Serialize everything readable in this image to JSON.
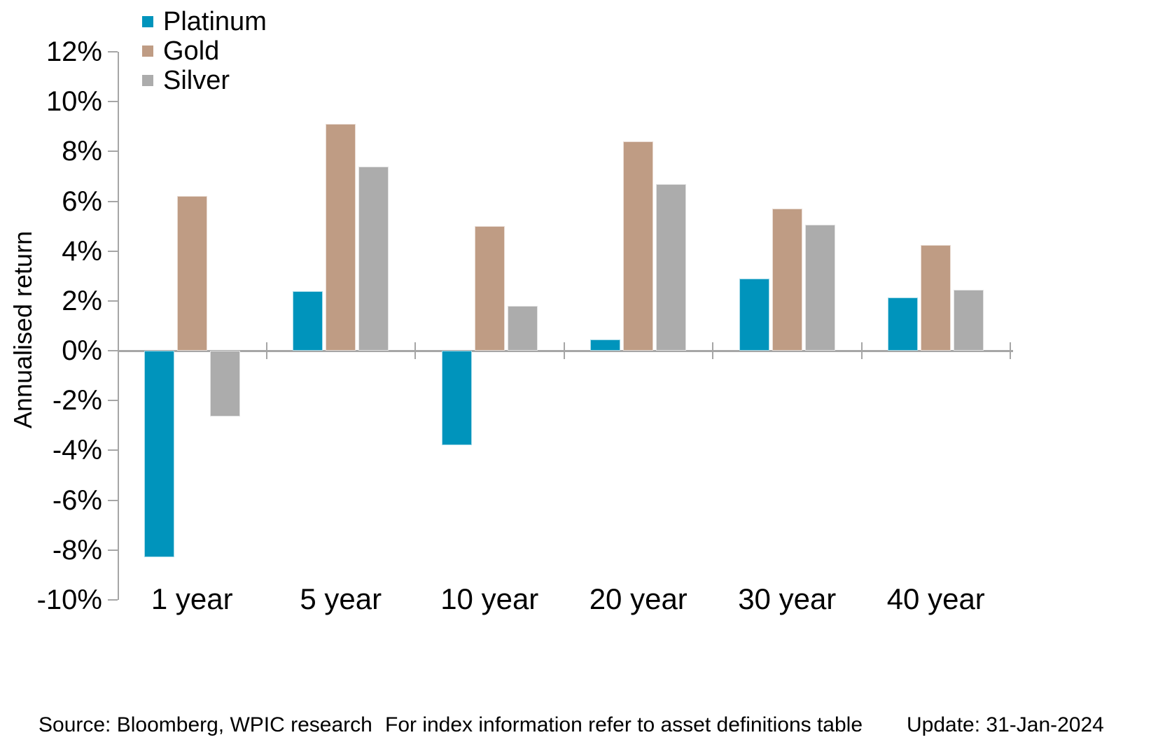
{
  "chart_data": {
    "type": "bar",
    "title": "",
    "ylabel": "Annualised return",
    "xlabel": "",
    "categories": [
      "1 year",
      "5 year",
      "10 year",
      "20 year",
      "30 year",
      "40 year"
    ],
    "series": [
      {
        "name": "Platinum",
        "color": "#0094BC",
        "values": [
          -8.3,
          2.4,
          -3.8,
          0.45,
          2.9,
          2.15
        ]
      },
      {
        "name": "Gold",
        "color": "#BF9C84",
        "values": [
          6.2,
          9.1,
          5.0,
          8.4,
          5.7,
          4.25
        ]
      },
      {
        "name": "Silver",
        "color": "#ACACAC",
        "values": [
          -2.65,
          7.4,
          1.8,
          6.7,
          5.05,
          2.45
        ]
      }
    ],
    "ylim": [
      -10,
      12
    ],
    "yticks": [
      12,
      10,
      8,
      6,
      4,
      2,
      0,
      -2,
      -4,
      -6,
      -8,
      -10
    ],
    "ytick_suffix": "%",
    "grid": false,
    "legend_position": "top-left",
    "axis_color": "#A6A6A6"
  },
  "footer": {
    "source": "Source: Bloomberg, WPIC research",
    "note": "For index information refer to asset definitions table",
    "update": "Update: 31-Jan-2024"
  }
}
